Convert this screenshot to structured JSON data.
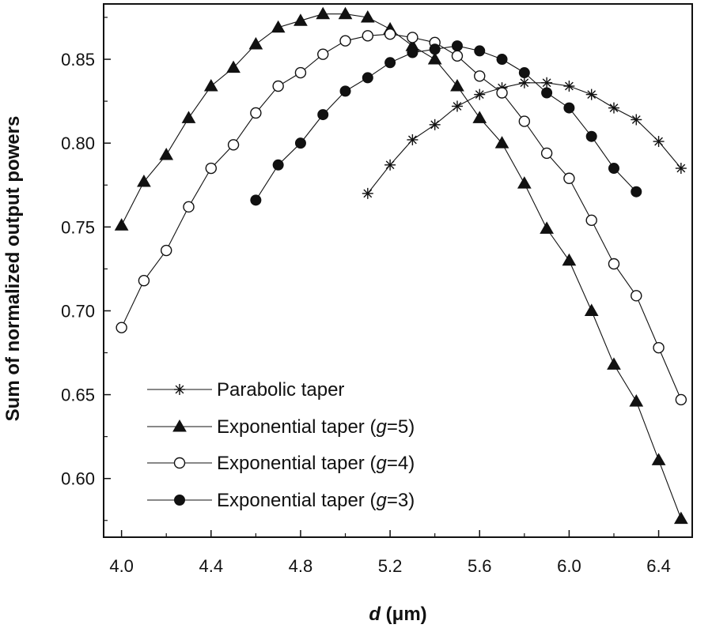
{
  "chart_data": {
    "type": "line",
    "title": "",
    "xlabel": {
      "italic": "d",
      "rest": " (μm)"
    },
    "ylabel": "Sum of normalized output powers",
    "xlim": [
      3.92,
      6.55
    ],
    "ylim": [
      0.565,
      0.883
    ],
    "x_ticks": [
      4.0,
      4.4,
      4.8,
      5.2,
      5.6,
      6.0,
      6.4
    ],
    "x_tick_labels": [
      "4.0",
      "4.4",
      "4.8",
      "5.2",
      "5.6",
      "6.0",
      "6.4"
    ],
    "y_ticks": [
      0.6,
      0.65,
      0.7,
      0.75,
      0.8,
      0.85
    ],
    "y_tick_labels": [
      "0.60",
      "0.65",
      "0.70",
      "0.75",
      "0.80",
      "0.85"
    ],
    "grid": false,
    "legend_position": "bottom-left",
    "series": [
      {
        "name": "Parabolic taper",
        "legend_parts": [
          {
            "text": "Parabolic taper",
            "italic": false
          }
        ],
        "marker": "asterisk",
        "color": "#111111",
        "x": [
          5.1,
          5.2,
          5.3,
          5.4,
          5.5,
          5.6,
          5.7,
          5.8,
          5.9,
          6.0,
          6.1,
          6.2,
          6.3,
          6.4,
          6.5
        ],
        "y": [
          0.77,
          0.787,
          0.802,
          0.811,
          0.822,
          0.829,
          0.833,
          0.836,
          0.836,
          0.834,
          0.829,
          0.821,
          0.814,
          0.801,
          0.785
        ]
      },
      {
        "name": "Exponential taper (g=5)",
        "legend_parts": [
          {
            "text": "Exponential taper (",
            "italic": false
          },
          {
            "text": "g",
            "italic": true
          },
          {
            "text": "=5)",
            "italic": false
          }
        ],
        "marker": "filled-triangle",
        "color": "#111111",
        "x": [
          4.0,
          4.1,
          4.2,
          4.3,
          4.4,
          4.5,
          4.6,
          4.7,
          4.8,
          4.9,
          5.0,
          5.1,
          5.2,
          5.3,
          5.4,
          5.5,
          5.6,
          5.7,
          5.8,
          5.9,
          6.0,
          6.1,
          6.2,
          6.3,
          6.4,
          6.5
        ],
        "y": [
          0.751,
          0.777,
          0.793,
          0.815,
          0.834,
          0.845,
          0.859,
          0.869,
          0.873,
          0.877,
          0.877,
          0.875,
          0.868,
          0.858,
          0.85,
          0.834,
          0.815,
          0.8,
          0.776,
          0.749,
          0.73,
          0.7,
          0.668,
          0.646,
          0.611,
          0.576
        ]
      },
      {
        "name": "Exponential taper (g=4)",
        "legend_parts": [
          {
            "text": "Exponential taper (",
            "italic": false
          },
          {
            "text": "g",
            "italic": true
          },
          {
            "text": "=4)",
            "italic": false
          }
        ],
        "marker": "open-circle",
        "color": "#111111",
        "x": [
          4.0,
          4.1,
          4.2,
          4.3,
          4.4,
          4.5,
          4.6,
          4.7,
          4.8,
          4.9,
          5.0,
          5.1,
          5.2,
          5.3,
          5.4,
          5.5,
          5.6,
          5.7,
          5.8,
          5.9,
          6.0,
          6.1,
          6.2,
          6.3,
          6.4,
          6.5
        ],
        "y": [
          0.69,
          0.718,
          0.736,
          0.762,
          0.785,
          0.799,
          0.818,
          0.834,
          0.842,
          0.853,
          0.861,
          0.864,
          0.865,
          0.863,
          0.86,
          0.852,
          0.84,
          0.83,
          0.813,
          0.794,
          0.779,
          0.754,
          0.728,
          0.709,
          0.678,
          0.647
        ]
      },
      {
        "name": "Exponential taper (g=3)",
        "legend_parts": [
          {
            "text": "Exponential taper (",
            "italic": false
          },
          {
            "text": "g",
            "italic": true
          },
          {
            "text": "=3)",
            "italic": false
          }
        ],
        "marker": "filled-circle",
        "color": "#111111",
        "x": [
          4.6,
          4.7,
          4.8,
          4.9,
          5.0,
          5.1,
          5.2,
          5.3,
          5.4,
          5.5,
          5.6,
          5.7,
          5.8,
          5.9,
          6.0,
          6.1,
          6.2,
          6.3
        ],
        "y": [
          0.766,
          0.787,
          0.8,
          0.817,
          0.831,
          0.839,
          0.848,
          0.854,
          0.856,
          0.858,
          0.855,
          0.85,
          0.842,
          0.83,
          0.821,
          0.804,
          0.785,
          0.771
        ]
      }
    ]
  }
}
